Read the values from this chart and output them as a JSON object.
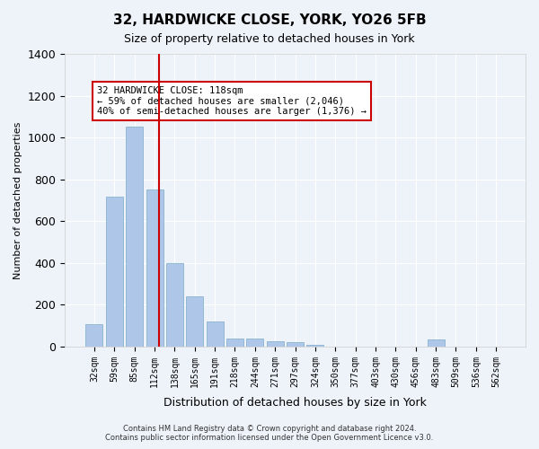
{
  "title": "32, HARDWICKE CLOSE, YORK, YO26 5FB",
  "subtitle": "Size of property relative to detached houses in York",
  "xlabel": "Distribution of detached houses by size in York",
  "ylabel": "Number of detached properties",
  "categories": [
    "32sqm",
    "59sqm",
    "85sqm",
    "112sqm",
    "138sqm",
    "165sqm",
    "191sqm",
    "218sqm",
    "244sqm",
    "271sqm",
    "297sqm",
    "324sqm",
    "350sqm",
    "377sqm",
    "403sqm",
    "430sqm",
    "456sqm",
    "483sqm",
    "509sqm",
    "536sqm",
    "562sqm"
  ],
  "values": [
    105,
    715,
    1050,
    750,
    400,
    240,
    120,
    40,
    40,
    25,
    20,
    10,
    0,
    0,
    0,
    0,
    0,
    35,
    0,
    0,
    0
  ],
  "bar_color": "#aec6e8",
  "bar_edge_color": "#7aaac8",
  "background_color": "#eef3fa",
  "grid_color": "#ffffff",
  "annotation_line1": "32 HARDWICKE CLOSE: 118sqm",
  "annotation_line2": "← 59% of detached houses are smaller (2,046)",
  "annotation_line3": "40% of semi-detached houses are larger (1,376) →",
  "annotation_box_color": "#ffffff",
  "annotation_box_edge": "#cc0000",
  "vline_color": "#cc0000",
  "ylim": [
    0,
    1400
  ],
  "yticks": [
    0,
    200,
    400,
    600,
    800,
    1000,
    1200,
    1400
  ],
  "footer1": "Contains HM Land Registry data © Crown copyright and database right 2024.",
  "footer2": "Contains public sector information licensed under the Open Government Licence v3.0."
}
